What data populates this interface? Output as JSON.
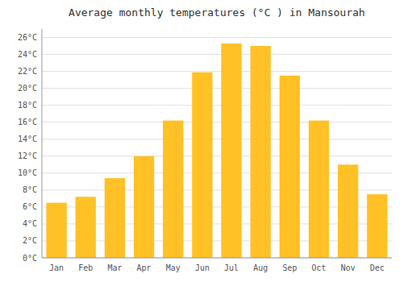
{
  "chart_data": {
    "type": "bar",
    "title": "Average monthly temperatures (°C ) in Mansourah",
    "categories": [
      "Jan",
      "Feb",
      "Mar",
      "Apr",
      "May",
      "Jun",
      "Jul",
      "Aug",
      "Sep",
      "Oct",
      "Nov",
      "Dec"
    ],
    "values": [
      6.5,
      7.2,
      9.4,
      12.0,
      16.2,
      21.9,
      25.3,
      25.0,
      21.5,
      16.2,
      11.0,
      7.5
    ],
    "color": "#FFC125",
    "ylim": [
      0,
      27
    ],
    "yticks": [
      {
        "value": 0,
        "label": "0°C"
      },
      {
        "value": 2,
        "label": "2°C"
      },
      {
        "value": 4,
        "label": "4°C"
      },
      {
        "value": 6,
        "label": "6°C"
      },
      {
        "value": 8,
        "label": "8°C"
      },
      {
        "value": 10,
        "label": "10°C"
      },
      {
        "value": 12,
        "label": "12°C"
      },
      {
        "value": 14,
        "label": "14°C"
      },
      {
        "value": 16,
        "label": "16°C"
      },
      {
        "value": 18,
        "label": "18°C"
      },
      {
        "value": 20,
        "label": "20°C"
      },
      {
        "value": 22,
        "label": "22°C"
      },
      {
        "value": 24,
        "label": "24°C"
      },
      {
        "value": 26,
        "label": "26°C"
      }
    ],
    "grid": true
  }
}
